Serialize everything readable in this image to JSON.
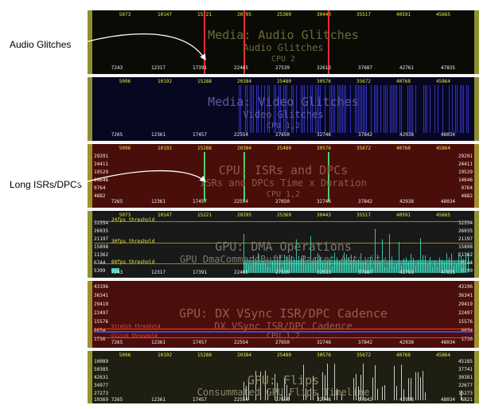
{
  "callouts": {
    "audio": "Audio Glitches",
    "isr": "Long ISRs/DPCs"
  },
  "colors": {
    "audio_bg": "#0b0b06",
    "video_bg": "#070722",
    "isr_bg": "#4a0e0a",
    "dma_bg": "#191919",
    "vsync_bg": "#4a0f0c",
    "flips_bg": "#1e1e12",
    "glitch_red": "#ff2a2a",
    "video_blue": "#3a3ad8",
    "dma_cyan": "#3fe8c8",
    "flip_white": "#e8e8e8"
  },
  "tracks": {
    "audio": {
      "top_ticks": [
        "5073",
        "10147",
        "15221",
        "20295",
        "25369",
        "30443",
        "35517",
        "40591",
        "45665"
      ],
      "bottom_ticks": [
        "7243",
        "12317",
        "17391",
        "22465",
        "27539",
        "32613",
        "37687",
        "42761",
        "47835"
      ],
      "title": "Media: Audio Glitches",
      "subtitle": "Audio Glitches",
      "cpu": "CPU   2"
    },
    "video": {
      "top_ticks": [
        "5096",
        "10192",
        "15288",
        "20384",
        "25480",
        "30576",
        "35672",
        "40768",
        "45864"
      ],
      "bottom_ticks": [
        "7265",
        "12361",
        "17457",
        "22554",
        "27650",
        "32746",
        "37842",
        "42938",
        "48034"
      ],
      "title": "Media: Video Glitches",
      "subtitle": "Video Glitches",
      "cpu": "CPU   1,2"
    },
    "isr": {
      "top_ticks": [
        "5096",
        "10192",
        "15288",
        "20384",
        "25480",
        "30576",
        "35672",
        "40768",
        "45864"
      ],
      "bottom_ticks": [
        "7265",
        "12361",
        "17457",
        "22554",
        "27650",
        "32746",
        "37842",
        "42938",
        "48034"
      ],
      "title": "CPU: ISRs and DPCs",
      "subtitle": "ISRs and DPCs Time x Duration",
      "cpu": "CPU   1,2",
      "y_left": [
        "29291",
        "24411",
        "19529",
        "14646",
        "9764",
        "4882"
      ],
      "y_right": [
        "29291",
        "24411",
        "19529",
        "14646",
        "9764",
        "4882"
      ]
    },
    "dma": {
      "top_ticks": [
        "5073",
        "10147",
        "15221",
        "20295",
        "25369",
        "30443",
        "35517",
        "40591",
        "45665"
      ],
      "bottom_ticks": [
        "7243",
        "12317",
        "17391",
        "22465",
        "27539",
        "32613",
        "37687",
        "42761",
        "47835"
      ],
      "title": "GPU: DMA Operations",
      "subtitle": "GPU DmaCommandBuffer Packet Activity",
      "thr_24": "24fps threshold",
      "thr_30": "30fps threshold",
      "thr_60": "60fps threshold",
      "y_left": [
        "32554",
        "26035",
        "21197",
        "15898",
        "11362",
        "6744",
        "5399"
      ],
      "y_right": [
        "32554",
        "26035",
        "21197",
        "15898",
        "11362",
        "6744",
        "5399"
      ]
    },
    "vsync": {
      "title": "GPU: DX VSync ISR/DPC Cadence",
      "subtitle": "DX VSync ISR/DPC Cadence",
      "cpu": "CPU   1,2",
      "thr_stretch": "Stretch threshold",
      "thr_glitch": "Glitch threshold",
      "bottom_ticks": [
        "7265",
        "12361",
        "17457",
        "22554",
        "27650",
        "32746",
        "37842",
        "42938",
        "48034"
      ],
      "y_left": [
        "43196",
        "36341",
        "29419",
        "22497",
        "15576",
        "8654",
        "1730"
      ],
      "y_right": [
        "43196",
        "36341",
        "29419",
        "22497",
        "15576",
        "8654",
        "1730"
      ]
    },
    "flips": {
      "top_ticks": [
        "5096",
        "10192",
        "15288",
        "20384",
        "25480",
        "30576",
        "35672",
        "40768",
        "45864"
      ],
      "bottom_ticks": [
        "7265",
        "12361",
        "17457",
        "22554",
        "27650",
        "32746",
        "37842",
        "42938",
        "48034"
      ],
      "title": "GPU: Flips",
      "subtitle": "Consummated GPU Flips Timeline",
      "y_left": [
        "10089",
        "50385",
        "42631",
        "34977",
        "27273",
        "19369"
      ],
      "y_right": [
        "45185",
        "37741",
        "30381",
        "22677",
        "15273",
        "6821"
      ]
    }
  }
}
